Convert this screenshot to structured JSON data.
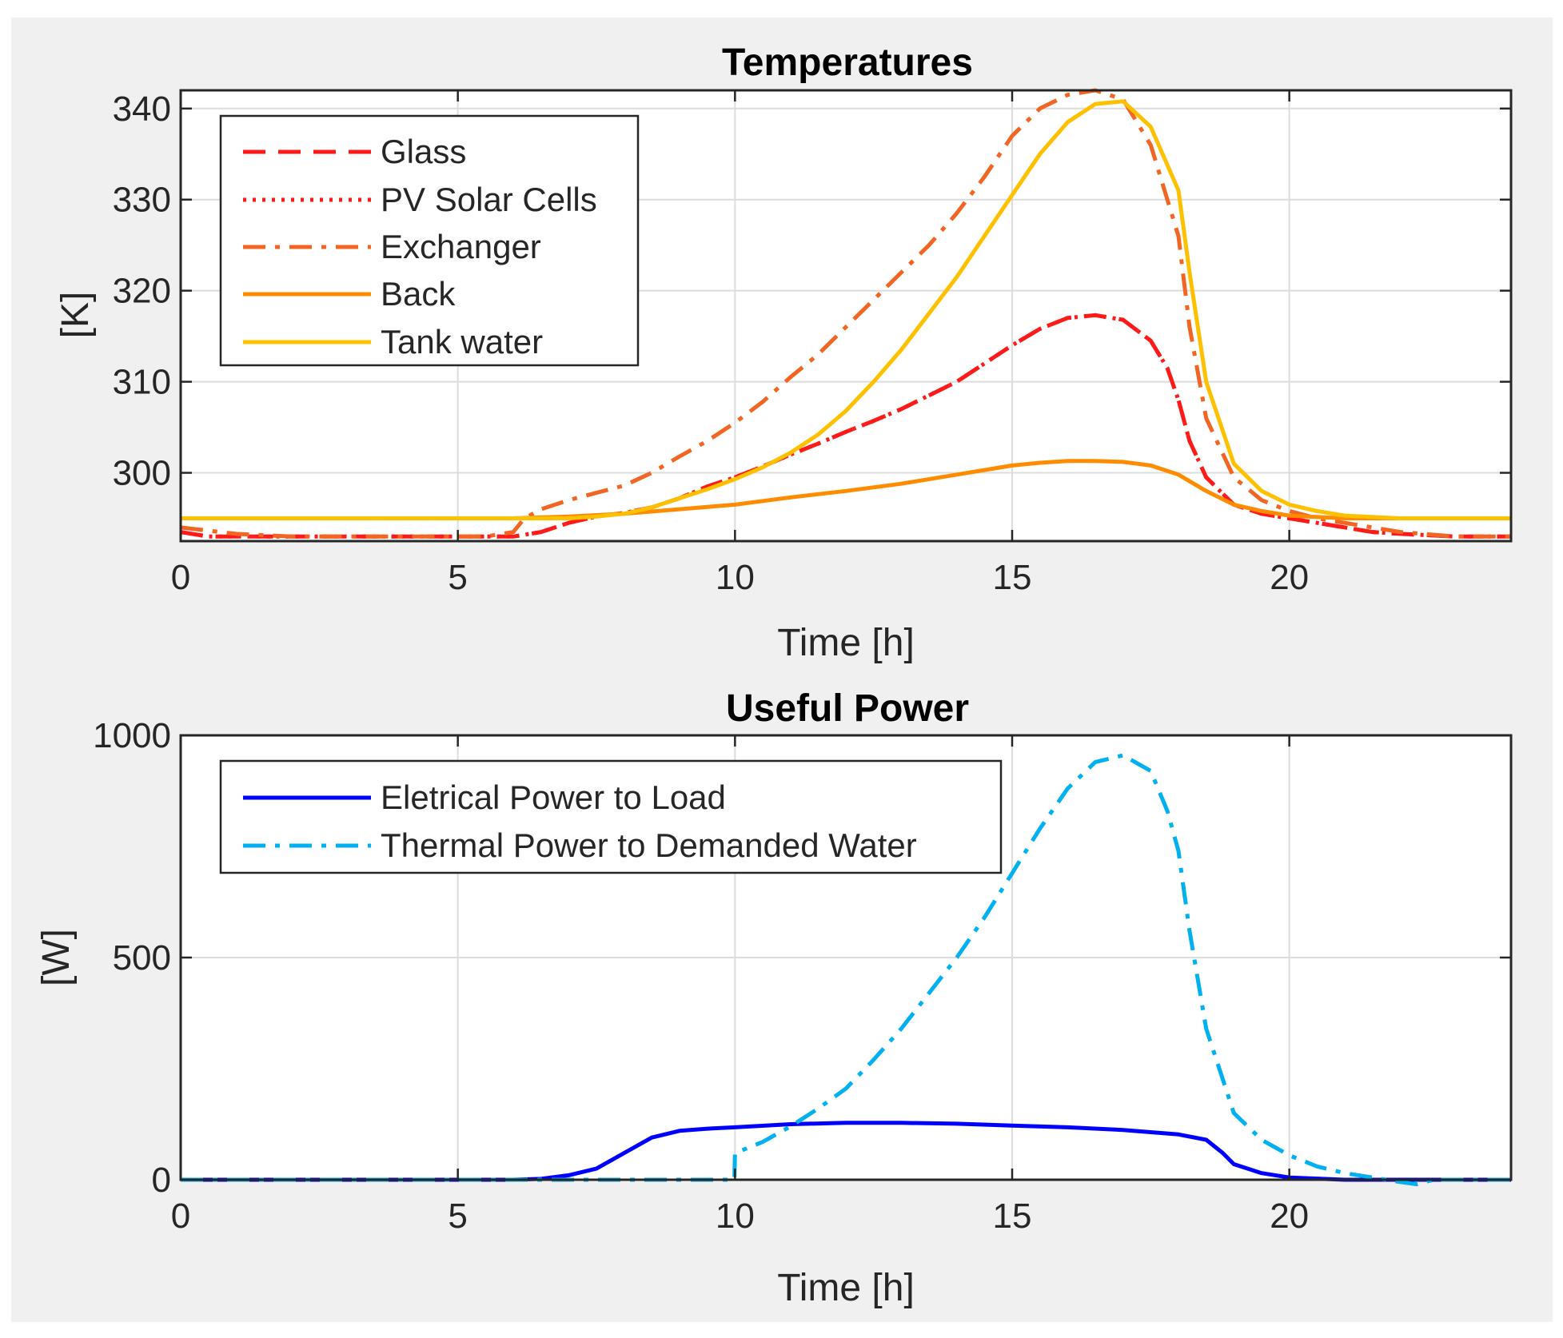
{
  "chart_data": [
    {
      "type": "line",
      "title": "Temperatures",
      "xlabel": "Time [h]",
      "ylabel": "[K]",
      "xlim": [
        0,
        24
      ],
      "ylim": [
        292.5,
        342
      ],
      "xticks": [
        0,
        5,
        10,
        15,
        20
      ],
      "yticks": [
        300,
        310,
        320,
        330,
        340
      ],
      "grid": true,
      "legend_position": "top-left",
      "series": [
        {
          "name": "Glass",
          "color": "#ff1a1a",
          "style": "dashed",
          "x": [
            0,
            0.5,
            1,
            2,
            3,
            4,
            5,
            5.5,
            6,
            6.5,
            7,
            7.5,
            8,
            8.5,
            9,
            9.5,
            10,
            10.5,
            11,
            11.5,
            12,
            12.5,
            13,
            13.5,
            14,
            14.5,
            15,
            15.5,
            16,
            16.5,
            17,
            17.5,
            17.8,
            18,
            18.2,
            18.5,
            19,
            19.5,
            20,
            20.5,
            21,
            21.5,
            22,
            23,
            24
          ],
          "y": [
            293.5,
            293,
            293,
            293,
            293,
            293,
            293,
            293,
            293,
            293.5,
            294.5,
            295.2,
            295.6,
            296.2,
            297.2,
            298.5,
            299.5,
            300.7,
            302,
            303.2,
            304.5,
            305.7,
            307,
            308.5,
            310,
            312,
            314,
            315.8,
            317,
            317.3,
            316.8,
            314.5,
            311.5,
            308,
            303.5,
            299.5,
            296.5,
            295.5,
            295,
            294.5,
            294,
            293.5,
            293.3,
            293,
            293
          ]
        },
        {
          "name": "PV Solar Cells",
          "color": "#ff1a1a",
          "style": "dotted",
          "x": [
            0,
            0.5,
            1,
            2,
            3,
            4,
            5,
            5.5,
            6,
            6.5,
            7,
            7.5,
            8,
            8.5,
            9,
            9.5,
            10,
            10.5,
            11,
            11.5,
            12,
            12.5,
            13,
            13.5,
            14,
            14.5,
            15,
            15.5,
            16,
            16.5,
            17,
            17.5,
            17.8,
            18,
            18.2,
            18.5,
            19,
            19.5,
            20,
            20.5,
            21,
            21.5,
            22,
            23,
            24
          ],
          "y": [
            293.5,
            293,
            293,
            293,
            293,
            293,
            293,
            293,
            293,
            293.5,
            294.5,
            295.2,
            295.6,
            296.2,
            297.2,
            298.5,
            299.5,
            300.7,
            302,
            303.2,
            304.5,
            305.7,
            307,
            308.5,
            310,
            312,
            314,
            315.8,
            317,
            317.3,
            316.8,
            314.5,
            311.5,
            308,
            303.5,
            299.5,
            296.5,
            295.5,
            295,
            294.5,
            294,
            293.5,
            293.3,
            293,
            293
          ]
        },
        {
          "name": "Exchanger",
          "color": "#f26522",
          "style": "dashdot",
          "x": [
            0,
            1,
            2,
            3,
            4,
            5,
            5.5,
            6,
            6.2,
            6.5,
            7,
            7.5,
            8,
            8.5,
            9,
            9.5,
            10,
            10.5,
            11,
            11.5,
            12,
            12.5,
            13,
            13.5,
            14,
            14.5,
            15,
            15.5,
            16,
            16.5,
            17,
            17.5,
            18,
            18.2,
            18.5,
            19,
            19.5,
            20,
            20.5,
            21,
            22,
            23,
            24
          ],
          "y": [
            294,
            293.3,
            293,
            293,
            293,
            293,
            293,
            293.5,
            295,
            296,
            297,
            297.8,
            298.6,
            300,
            301.8,
            303.5,
            305.5,
            307.8,
            310.5,
            313,
            316,
            319,
            322,
            325,
            328.5,
            332.5,
            337,
            340,
            341.5,
            342,
            341,
            336,
            326,
            316,
            306,
            299.5,
            297,
            295.8,
            295,
            294.5,
            293.5,
            293,
            293
          ]
        },
        {
          "name": "Back",
          "color": "#ff8c00",
          "style": "solid",
          "x": [
            0,
            2,
            4,
            6,
            7,
            8,
            9,
            10,
            11,
            12,
            13,
            14,
            15,
            15.5,
            16,
            16.5,
            17,
            17.5,
            18,
            18.5,
            19,
            19.5,
            20,
            21,
            22,
            23,
            24
          ],
          "y": [
            295,
            295,
            295,
            295,
            295.2,
            295.5,
            296,
            296.5,
            297.3,
            298,
            298.8,
            299.8,
            300.8,
            301.1,
            301.3,
            301.3,
            301.2,
            300.8,
            299.8,
            298,
            296.5,
            295.8,
            295.3,
            295,
            295,
            295,
            295
          ]
        },
        {
          "name": "Tank water",
          "color": "#ffc000",
          "style": "solid",
          "x": [
            0,
            2,
            4,
            6,
            7,
            7.5,
            8,
            8.5,
            9,
            9.5,
            10,
            10.5,
            11,
            11.5,
            12,
            12.5,
            13,
            13.5,
            14,
            14.5,
            15,
            15.5,
            16,
            16.5,
            17,
            17.5,
            18,
            18.2,
            18.5,
            19,
            19.5,
            20,
            20.5,
            21,
            22,
            23,
            24
          ],
          "y": [
            295,
            295,
            295,
            295,
            295,
            295.2,
            295.5,
            296.2,
            297.2,
            298.2,
            299.3,
            300.6,
            302.2,
            304.2,
            306.8,
            310,
            313.5,
            317.5,
            321.5,
            326,
            330.5,
            335,
            338.5,
            340.5,
            340.8,
            338,
            331,
            322,
            310,
            301,
            298,
            296.5,
            295.8,
            295.3,
            295,
            295,
            295
          ]
        }
      ]
    },
    {
      "type": "line",
      "title": "Useful Power",
      "xlabel": "Time [h]",
      "ylabel": "[W]",
      "xlim": [
        0,
        24
      ],
      "ylim": [
        0,
        1000
      ],
      "xticks": [
        0,
        5,
        10,
        15,
        20
      ],
      "yticks": [
        0,
        500,
        1000
      ],
      "grid": true,
      "legend_position": "top-left",
      "series": [
        {
          "name": "Eletrical Power to Load",
          "color": "#0000ff",
          "style": "solid",
          "x": [
            0,
            2,
            4,
            6,
            6.5,
            7,
            7.5,
            8,
            8.5,
            9,
            9.5,
            10,
            11,
            12,
            13,
            14,
            15,
            16,
            17,
            18,
            18.5,
            18.8,
            19,
            19.5,
            20,
            21,
            22,
            24
          ],
          "y": [
            0,
            0,
            0,
            0,
            2,
            10,
            25,
            60,
            95,
            110,
            115,
            118,
            125,
            128,
            128,
            126,
            122,
            118,
            112,
            102,
            90,
            60,
            35,
            15,
            5,
            0,
            0,
            0
          ]
        },
        {
          "name": "Thermal Power to Demanded Water",
          "color": "#00b0f0",
          "style": "dashdot",
          "x": [
            0,
            2,
            4,
            6,
            8,
            9.99,
            10,
            10.5,
            11,
            11.5,
            12,
            12.5,
            13,
            13.5,
            14,
            14.5,
            15,
            15.5,
            16,
            16.5,
            17,
            17.5,
            17.8,
            18,
            18.2,
            18.5,
            19,
            19.5,
            20,
            20.5,
            21,
            21.5,
            22,
            22.3,
            22.6,
            23,
            24
          ],
          "y": [
            0,
            0,
            0,
            0,
            0,
            0,
            60,
            85,
            120,
            160,
            205,
            270,
            340,
            420,
            500,
            590,
            690,
            790,
            880,
            940,
            955,
            920,
            830,
            740,
            560,
            340,
            150,
            90,
            55,
            30,
            15,
            5,
            -5,
            -10,
            0,
            0,
            0
          ]
        }
      ]
    }
  ]
}
